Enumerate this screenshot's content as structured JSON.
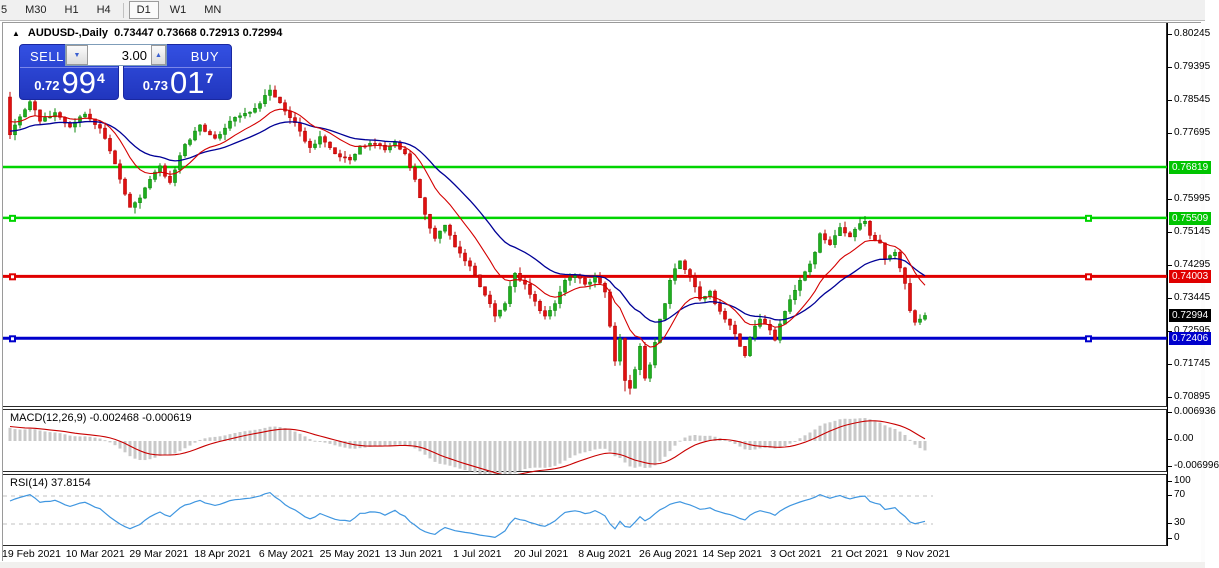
{
  "toolbar": {
    "periods": [
      "5",
      "M30",
      "H1",
      "H4",
      "D1",
      "W1",
      "MN"
    ],
    "active_period": "D1"
  },
  "chart_header": {
    "symbol_title": "AUDUSD-,Daily",
    "ohlc_text": "0.73447 0.73668 0.72913 0.72994"
  },
  "trade_panel": {
    "sell_label": "SELL",
    "buy_label": "BUY",
    "volume": "3.00",
    "bid": {
      "small": "0.72",
      "big": "99",
      "sup": "4"
    },
    "ask": {
      "small": "0.73",
      "big": "01",
      "sup": "7"
    }
  },
  "macd_panel": {
    "label": "MACD(12,26,9)",
    "value": "-0.002468",
    "signal_value": "-0.000619"
  },
  "rsi_panel": {
    "label": "RSI(14)",
    "value": "37.8154"
  },
  "colors": {
    "candle_up": "#1fae1f",
    "candle_up_stroke": "#0c8a0c",
    "candle_down": "#e01010",
    "candle_down_stroke": "#b80000",
    "ma_fast": "#d40000",
    "ma_slow": "#000096",
    "hline_green": "#00d400",
    "hline_red": "#e00000",
    "hline_blue": "#0000cc",
    "badge_green": "#00c400",
    "badge_red": "#e00000",
    "badge_blue": "#0000cc",
    "badge_black": "#000000",
    "macd_hist": "#c9c9c9",
    "macd_signal": "#c80000",
    "rsi_line": "#3f96e0",
    "rsi_level": "#c0c0c0",
    "trade_blue": "#2136be"
  },
  "chart_data": {
    "type": "candlestick",
    "symbol": "AUDUSD",
    "timeframe": "Daily",
    "ohlc_display": {
      "open": 0.73447,
      "high": 0.73668,
      "low": 0.72913,
      "close": 0.72994
    },
    "ylim": [
      0.70895,
      0.80245
    ],
    "y_tick_labels": [
      "0.80245",
      "0.79395",
      "0.78545",
      "0.77695",
      "0.75995",
      "0.75145",
      "0.74295",
      "0.73445",
      "0.72595",
      "0.71745",
      "0.70895"
    ],
    "x_labels": [
      "19 Feb 2021",
      "10 Mar 2021",
      "29 Mar 2021",
      "18 Apr 2021",
      "6 May 2021",
      "25 May 2021",
      "13 Jun 2021",
      "1 Jul 2021",
      "20 Jul 2021",
      "8 Aug 2021",
      "26 Aug 2021",
      "14 Sep 2021",
      "3 Oct 2021",
      "21 Oct 2021",
      "9 Nov 2021"
    ],
    "num_candles": 184,
    "first_open": 0.7862,
    "close_waypoints": [
      [
        0,
        0.7765
      ],
      [
        1,
        0.779
      ],
      [
        4,
        0.785
      ],
      [
        6,
        0.78
      ],
      [
        9,
        0.7822
      ],
      [
        12,
        0.7785
      ],
      [
        15,
        0.7818
      ],
      [
        18,
        0.7782
      ],
      [
        21,
        0.769
      ],
      [
        24,
        0.7578
      ],
      [
        26,
        0.7602
      ],
      [
        28,
        0.765
      ],
      [
        30,
        0.7685
      ],
      [
        32,
        0.7642
      ],
      [
        35,
        0.774
      ],
      [
        38,
        0.779
      ],
      [
        41,
        0.7756
      ],
      [
        44,
        0.78
      ],
      [
        47,
        0.782
      ],
      [
        50,
        0.7845
      ],
      [
        52,
        0.788
      ],
      [
        55,
        0.7826
      ],
      [
        57,
        0.7796
      ],
      [
        60,
        0.7732
      ],
      [
        62,
        0.776
      ],
      [
        65,
        0.7716
      ],
      [
        68,
        0.77
      ],
      [
        70,
        0.7736
      ],
      [
        73,
        0.7742
      ],
      [
        75,
        0.7726
      ],
      [
        77,
        0.7746
      ],
      [
        79,
        0.7716
      ],
      [
        81,
        0.765
      ],
      [
        83,
        0.756
      ],
      [
        85,
        0.7498
      ],
      [
        87,
        0.7532
      ],
      [
        89,
        0.7476
      ],
      [
        91,
        0.744
      ],
      [
        93,
        0.7404
      ],
      [
        95,
        0.7352
      ],
      [
        97,
        0.7298
      ],
      [
        99,
        0.733
      ],
      [
        101,
        0.7408
      ],
      [
        103,
        0.738
      ],
      [
        105,
        0.7336
      ],
      [
        107,
        0.7298
      ],
      [
        109,
        0.733
      ],
      [
        111,
        0.739
      ],
      [
        113,
        0.7402
      ],
      [
        115,
        0.738
      ],
      [
        117,
        0.74
      ],
      [
        119,
        0.736
      ],
      [
        120,
        0.7272
      ],
      [
        121,
        0.7182
      ],
      [
        122,
        0.724
      ],
      [
        123,
        0.7132
      ],
      [
        124,
        0.7112
      ],
      [
        125,
        0.716
      ],
      [
        126,
        0.722
      ],
      [
        127,
        0.7138
      ],
      [
        128,
        0.7172
      ],
      [
        129,
        0.723
      ],
      [
        130,
        0.729
      ],
      [
        131,
        0.733
      ],
      [
        132,
        0.739
      ],
      [
        134,
        0.744
      ],
      [
        136,
        0.74
      ],
      [
        138,
        0.7342
      ],
      [
        140,
        0.7362
      ],
      [
        141,
        0.733
      ],
      [
        143,
        0.729
      ],
      [
        145,
        0.7252
      ],
      [
        147,
        0.7196
      ],
      [
        148,
        0.7242
      ],
      [
        150,
        0.729
      ],
      [
        152,
        0.7262
      ],
      [
        153,
        0.7236
      ],
      [
        155,
        0.731
      ],
      [
        156,
        0.734
      ],
      [
        158,
        0.739
      ],
      [
        160,
        0.7432
      ],
      [
        161,
        0.7462
      ],
      [
        162,
        0.751
      ],
      [
        164,
        0.7482
      ],
      [
        166,
        0.7526
      ],
      [
        168,
        0.7502
      ],
      [
        170,
        0.7536
      ],
      [
        171,
        0.7542
      ],
      [
        172,
        0.7506
      ],
      [
        174,
        0.7486
      ],
      [
        175,
        0.7446
      ],
      [
        177,
        0.7462
      ],
      [
        178,
        0.7422
      ],
      [
        179,
        0.7382
      ],
      [
        180,
        0.7312
      ],
      [
        181,
        0.7282
      ],
      [
        182,
        0.729
      ],
      [
        183,
        0.72994
      ]
    ],
    "wick_overrides": [
      [
        0,
        "high",
        0.7868
      ],
      [
        124,
        "low",
        0.7096
      ],
      [
        123,
        "low",
        0.7104
      ],
      [
        170,
        "high",
        0.7552
      ],
      [
        171,
        "high",
        0.7548
      ]
    ],
    "moving_averages": [
      {
        "name": "fast-ema",
        "period": 12,
        "seed_offset": 0.004
      },
      {
        "name": "slow-ema",
        "period": 26,
        "seed_offset": 0.001
      }
    ],
    "hlines": [
      {
        "price": 0.76819,
        "label": "0.76819",
        "color_key": "hline_green",
        "badge_key": "badge_green",
        "width": 2.5,
        "selected": false
      },
      {
        "price": 0.75509,
        "label": "0.75509",
        "color_key": "hline_green",
        "badge_key": "badge_green",
        "width": 2.5,
        "selected": true
      },
      {
        "price": 0.74003,
        "label": "0.74003",
        "color_key": "hline_red",
        "badge_key": "badge_red",
        "width": 3,
        "selected": true
      },
      {
        "price": 0.72406,
        "label": "0.72406",
        "color_key": "hline_blue",
        "badge_key": "badge_blue",
        "width": 3,
        "selected": true
      }
    ],
    "current_price": {
      "value": 0.72994,
      "label": "0.72994"
    },
    "macd": {
      "params": [
        12,
        26,
        9
      ],
      "last_value": -0.002468,
      "last_signal": -0.000619,
      "axis_labels": [
        {
          "text": "0.006936",
          "y": 412
        },
        {
          "text": "0.00",
          "y": 439
        },
        {
          "text": "-0.006996",
          "y": 466
        }
      ]
    },
    "rsi": {
      "period": 14,
      "last_value": 37.8154,
      "levels": [
        70,
        30
      ],
      "axis_labels": [
        {
          "text": "100",
          "y": 481
        },
        {
          "text": "70",
          "y": 495
        },
        {
          "text": "30",
          "y": 523
        },
        {
          "text": "0",
          "y": 538
        }
      ]
    }
  }
}
